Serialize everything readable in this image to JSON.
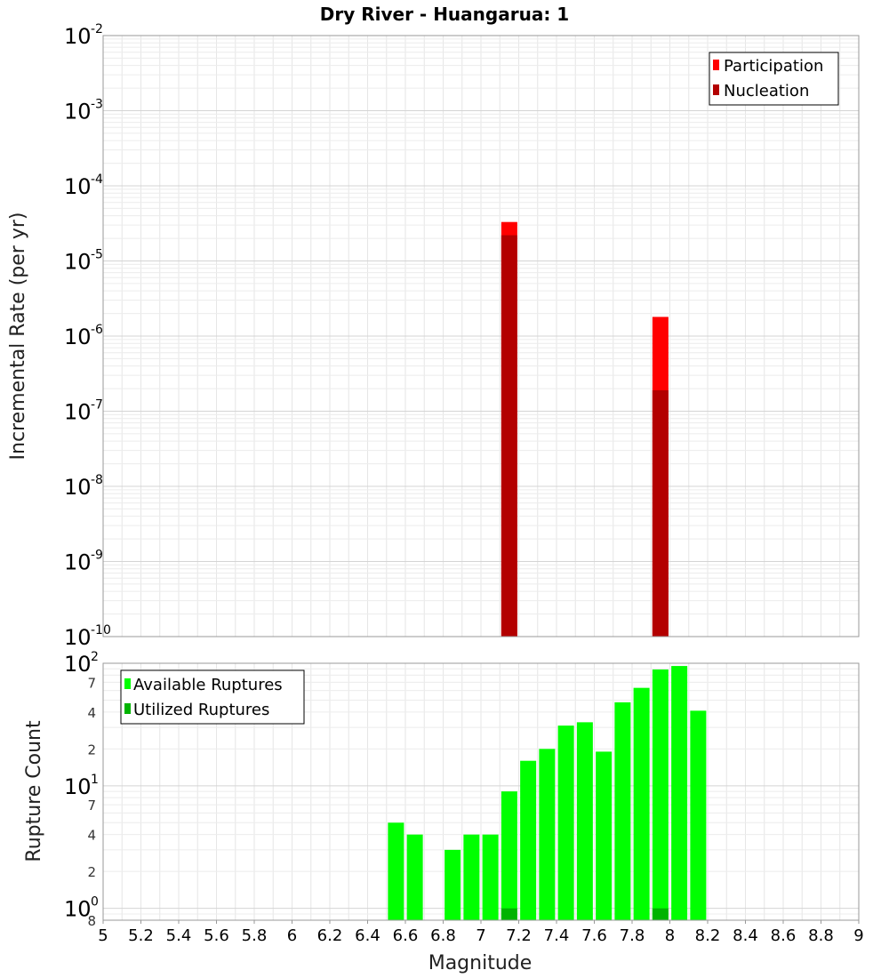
{
  "chart_data": [
    {
      "type": "bar",
      "title": "Dry River - Huangarua: 1",
      "ylabel": "Incremental Rate (per yr)",
      "xlabel": "",
      "yscale": "log",
      "ylim": [
        1e-10,
        0.01
      ],
      "xlim": [
        5,
        9
      ],
      "y_tick_exponents": [
        -2,
        -3,
        -4,
        -5,
        -6,
        -7,
        -8,
        -9,
        -10
      ],
      "legend_position": "top-right",
      "series": [
        {
          "name": "Participation",
          "color": "#ff0000",
          "points": [
            {
              "x": 7.15,
              "y": 3.3e-05
            },
            {
              "x": 7.95,
              "y": 1.8e-06
            }
          ]
        },
        {
          "name": "Nucleation",
          "color": "#b30000",
          "points": [
            {
              "x": 7.15,
              "y": 2.2e-05
            },
            {
              "x": 7.95,
              "y": 1.9e-07
            }
          ]
        }
      ]
    },
    {
      "type": "bar",
      "title": "",
      "ylabel": "Rupture Count",
      "xlabel": "Magnitude",
      "yscale": "log",
      "ylim": [
        0.8,
        100
      ],
      "xlim": [
        5,
        9
      ],
      "x_ticks": [
        "5",
        "5.2",
        "5.4",
        "5.6",
        "5.8",
        "6",
        "6.2",
        "6.4",
        "6.6",
        "6.8",
        "7",
        "7.2",
        "7.4",
        "7.6",
        "7.8",
        "8",
        "8.2",
        "8.4",
        "8.6",
        "8.8",
        "9"
      ],
      "y_major_ticks": [
        {
          "value": 100,
          "base": "10",
          "exp": "2"
        },
        {
          "value": 10,
          "base": "10",
          "exp": "1"
        },
        {
          "value": 1,
          "base": "10",
          "exp": "0"
        }
      ],
      "y_minor_ticks": [
        {
          "value": 70,
          "label": "7"
        },
        {
          "value": 40,
          "label": "4"
        },
        {
          "value": 20,
          "label": "2"
        },
        {
          "value": 7,
          "label": "7"
        },
        {
          "value": 4,
          "label": "4"
        },
        {
          "value": 2,
          "label": "2"
        },
        {
          "value": 0.8,
          "label": "8"
        }
      ],
      "legend_position": "top-left",
      "series": [
        {
          "name": "Available Ruptures",
          "color": "#00ff00",
          "points": [
            {
              "x": 6.55,
              "y": 5
            },
            {
              "x": 6.65,
              "y": 4
            },
            {
              "x": 6.85,
              "y": 3
            },
            {
              "x": 6.95,
              "y": 4
            },
            {
              "x": 7.05,
              "y": 4
            },
            {
              "x": 7.15,
              "y": 9
            },
            {
              "x": 7.25,
              "y": 16
            },
            {
              "x": 7.35,
              "y": 20
            },
            {
              "x": 7.45,
              "y": 31
            },
            {
              "x": 7.55,
              "y": 33
            },
            {
              "x": 7.65,
              "y": 19
            },
            {
              "x": 7.75,
              "y": 48
            },
            {
              "x": 7.85,
              "y": 63
            },
            {
              "x": 7.95,
              "y": 89
            },
            {
              "x": 8.05,
              "y": 95
            },
            {
              "x": 8.15,
              "y": 41
            }
          ]
        },
        {
          "name": "Utilized Ruptures",
          "color": "#00b300",
          "points": [
            {
              "x": 7.15,
              "y": 1
            },
            {
              "x": 7.95,
              "y": 1
            }
          ]
        }
      ]
    }
  ]
}
